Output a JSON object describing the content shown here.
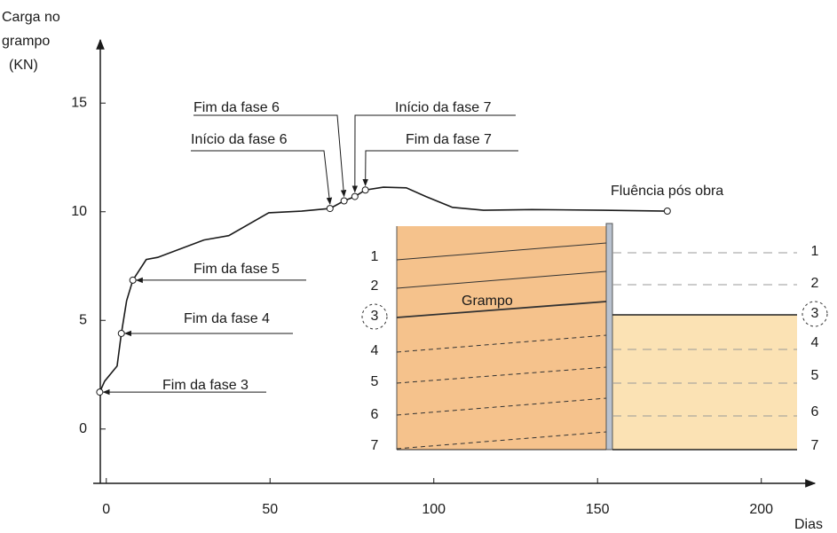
{
  "chart_data": {
    "type": "line",
    "y_label": [
      "Carga no",
      "grampo",
      "(KN)"
    ],
    "x_label": "Dias",
    "x": [
      -2,
      -0.5,
      3.3,
      4.6,
      6.2,
      8.1,
      12.2,
      15.7,
      29.8,
      37.4,
      49.6,
      59.6,
      68.3,
      72.6,
      75.9,
      79.1,
      84.6,
      91.6,
      97.6,
      105.7,
      115.2,
      130,
      151.8,
      171.3
    ],
    "series": [
      {
        "color": "#1a1a1a",
        "values": [
          1.7,
          2.2,
          2.9,
          4.4,
          5.9,
          6.85,
          7.8,
          7.9,
          8.7,
          8.9,
          9.95,
          10.03,
          10.15,
          10.5,
          10.7,
          11.0,
          11.13,
          11.1,
          10.7,
          10.2,
          10.07,
          10.1,
          10.07,
          10.03
        ]
      }
    ],
    "xlim": [
      -4,
      212
    ],
    "ylim": [
      -2.5,
      17.5
    ],
    "xticks": [
      0,
      50,
      100,
      150,
      200
    ],
    "yticks": [
      0,
      5,
      10,
      15
    ],
    "annotations": [
      "Fim da fase 3",
      "Fim da fase 4",
      "Fim da fase 5",
      "Início da fase 6",
      "Fim da fase 6",
      "Início da fase 7",
      "Fim da fase 7",
      "Fluência pós obra"
    ],
    "inset": {
      "label": "Grampo",
      "levels_left": [
        "1",
        "2",
        "3",
        "4",
        "5",
        "6",
        "7"
      ],
      "levels_right": [
        "1",
        "2",
        "3",
        "4",
        "5",
        "6",
        "7"
      ]
    }
  }
}
